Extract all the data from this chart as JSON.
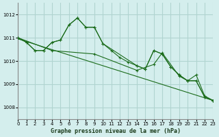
{
  "xlabel": "Graphe pression niveau de la mer (hPa)",
  "background_color": "#d4eeed",
  "grid_color": "#b0d4d0",
  "line_color": "#1a6b1a",
  "xlim": [
    0,
    23
  ],
  "ylim": [
    1007.5,
    1012.5
  ],
  "yticks": [
    1008,
    1009,
    1010,
    1011,
    1012
  ],
  "xticks": [
    0,
    1,
    2,
    3,
    4,
    5,
    6,
    7,
    8,
    9,
    10,
    11,
    12,
    13,
    14,
    15,
    16,
    17,
    18,
    19,
    20,
    21,
    22,
    23
  ],
  "series1_x": [
    0,
    1,
    2,
    3,
    4,
    5,
    6,
    7,
    8,
    9,
    10,
    11,
    12,
    13,
    14,
    15,
    16,
    17,
    18,
    19,
    20,
    21,
    22,
    23
  ],
  "series1_y": [
    1011.0,
    1010.8,
    1010.45,
    1010.45,
    1010.8,
    1010.9,
    1011.55,
    1011.85,
    1011.45,
    1011.45,
    1010.75,
    1010.45,
    1010.15,
    1009.95,
    1009.8,
    1009.65,
    1010.45,
    1010.3,
    1009.75,
    1009.4,
    1009.15,
    1009.15,
    1008.45,
    1008.3
  ],
  "series2_x": [
    0,
    1,
    2,
    3,
    4,
    5,
    6,
    7,
    8,
    9,
    10,
    14,
    15,
    16,
    17,
    18,
    19,
    20,
    21,
    22,
    23
  ],
  "series2_y": [
    1011.0,
    1010.8,
    1010.45,
    1010.45,
    1010.8,
    1010.9,
    1011.55,
    1011.85,
    1011.45,
    1011.45,
    1010.75,
    1009.8,
    1009.65,
    1010.45,
    1010.3,
    1009.75,
    1009.4,
    1009.15,
    1009.15,
    1008.45,
    1008.3
  ],
  "series3_x": [
    0,
    4,
    9,
    14,
    16,
    17,
    19,
    20,
    21,
    22,
    23
  ],
  "series3_y": [
    1011.0,
    1010.45,
    1010.3,
    1009.6,
    1009.85,
    1010.35,
    1009.35,
    1009.15,
    1009.4,
    1008.5,
    1008.3
  ],
  "trend_x": [
    0,
    23
  ],
  "trend_y": [
    1010.95,
    1008.3
  ]
}
